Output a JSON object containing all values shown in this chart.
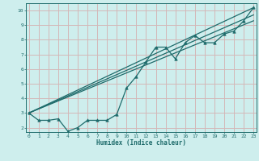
{
  "title": "",
  "xlabel": "Humidex (Indice chaleur)",
  "bg_color": "#ceeeed",
  "grid_color": "#d4b8b8",
  "line_color": "#1e6b6b",
  "marker_color": "#1e6b6b",
  "xlim": [
    0,
    23
  ],
  "ylim": [
    1.7,
    10.5
  ],
  "xticks": [
    0,
    1,
    2,
    3,
    4,
    5,
    6,
    7,
    8,
    9,
    10,
    11,
    12,
    13,
    14,
    15,
    16,
    17,
    18,
    19,
    20,
    21,
    22,
    23
  ],
  "yticks": [
    2,
    3,
    4,
    5,
    6,
    7,
    8,
    9,
    10
  ],
  "data_x": [
    0,
    1,
    2,
    3,
    4,
    5,
    6,
    7,
    8,
    9,
    10,
    11,
    12,
    13,
    14,
    15,
    16,
    17,
    18,
    19,
    20,
    21,
    22,
    23
  ],
  "data_y": [
    3.0,
    2.5,
    2.5,
    2.6,
    1.75,
    2.0,
    2.5,
    2.5,
    2.5,
    2.9,
    4.7,
    5.5,
    6.5,
    7.5,
    7.5,
    6.7,
    7.8,
    8.3,
    7.8,
    7.8,
    8.4,
    8.6,
    9.3,
    10.2
  ],
  "trend1_x": [
    0,
    23
  ],
  "trend1_y": [
    3.0,
    9.3
  ],
  "trend2_x": [
    0,
    23
  ],
  "trend2_y": [
    3.0,
    10.2
  ],
  "trend3_x": [
    0,
    23
  ],
  "trend3_y": [
    3.0,
    9.7
  ]
}
